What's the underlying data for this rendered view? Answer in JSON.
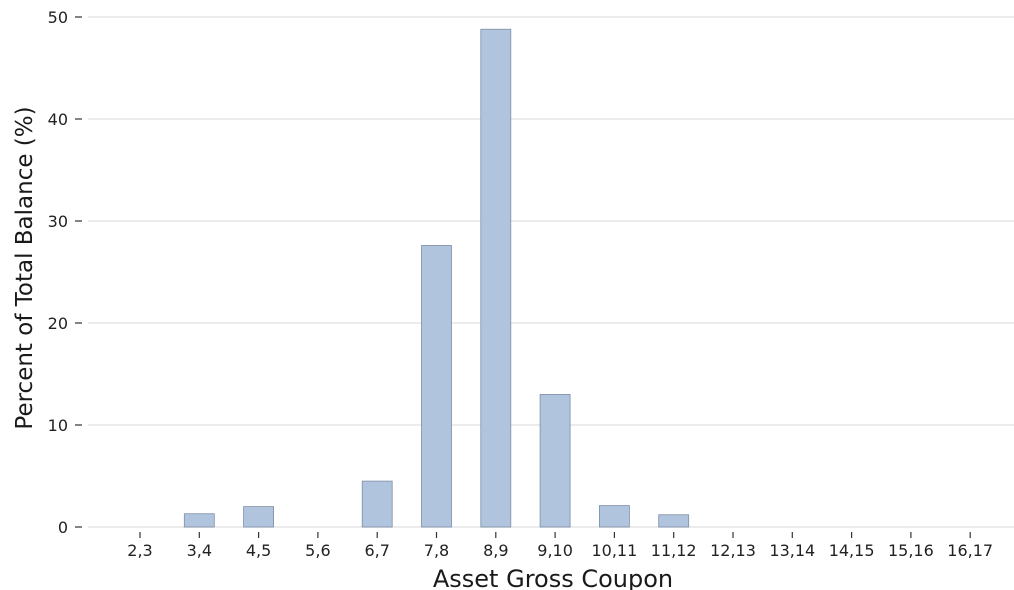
{
  "chart_data": {
    "type": "bar",
    "xlabel": "Asset Gross Coupon",
    "ylabel": "Percent of Total Balance (%)",
    "categories": [
      "2,3",
      "3,4",
      "4,5",
      "5,6",
      "6,7",
      "7,8",
      "8,9",
      "9,10",
      "10,11",
      "11,12",
      "12,13",
      "13,14",
      "14,15",
      "15,16",
      "16,17"
    ],
    "values": [
      0,
      1.3,
      2.0,
      0,
      4.5,
      27.6,
      48.8,
      13.0,
      2.1,
      1.2,
      0,
      0,
      0,
      0,
      0
    ],
    "ylim": [
      0,
      50
    ],
    "yticks": [
      0,
      10,
      20,
      30,
      40,
      50
    ],
    "grid": "horizontal",
    "bar_color": "#b0c4de"
  }
}
